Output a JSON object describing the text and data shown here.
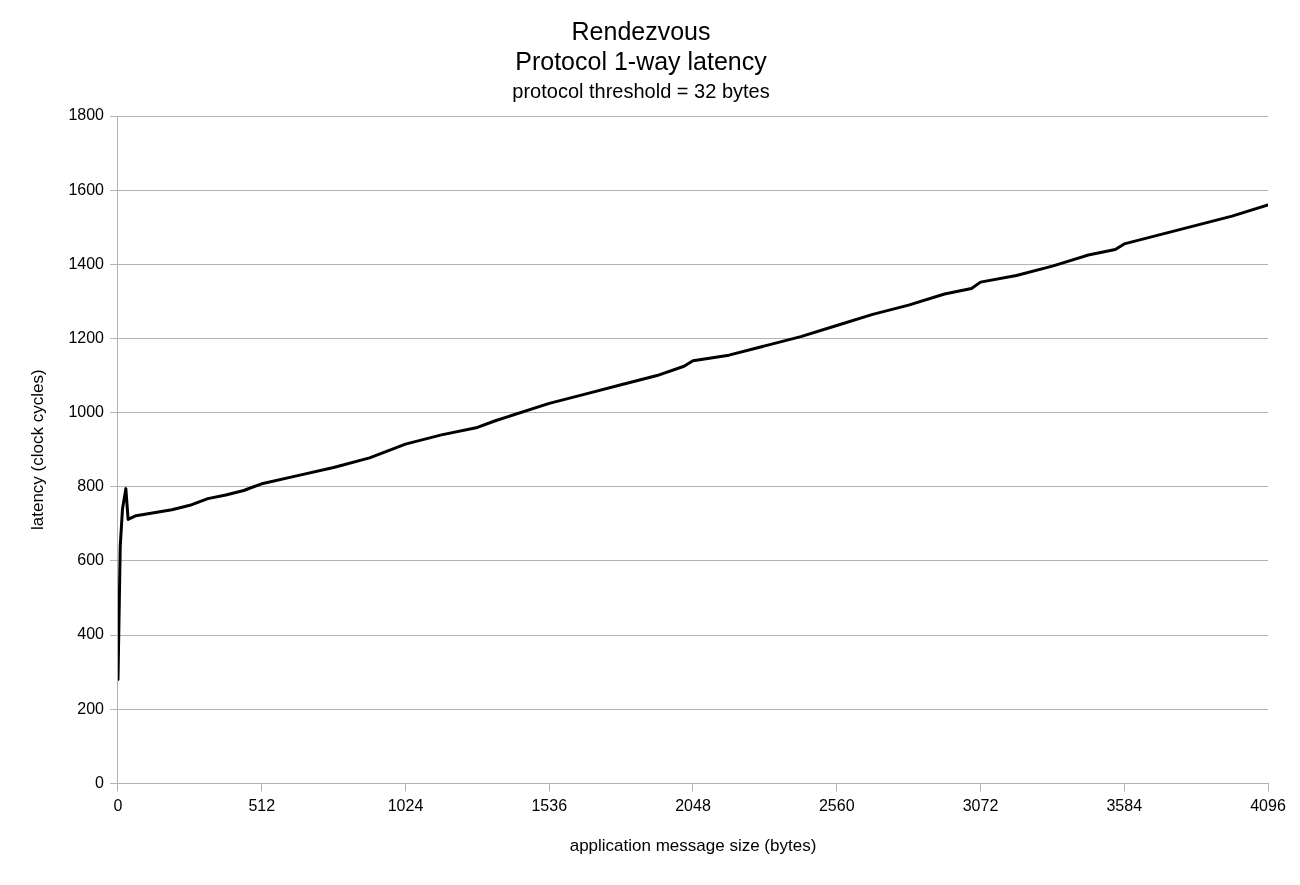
{
  "chart_data": {
    "type": "line",
    "title": "Rendezvous\nProtocol 1-way latency",
    "subtitle": "protocol threshold = 32 bytes",
    "xlabel": "application message size (bytes)",
    "ylabel": "latency (clock cycles)",
    "x": [
      0,
      8,
      16,
      28,
      36,
      64,
      128,
      192,
      256,
      320,
      384,
      448,
      512,
      640,
      768,
      896,
      1024,
      1152,
      1280,
      1344,
      1536,
      1664,
      1792,
      1920,
      2016,
      2048,
      2176,
      2304,
      2432,
      2560,
      2688,
      2816,
      2944,
      3040,
      3072,
      3200,
      3328,
      3456,
      3552,
      3584,
      3712,
      3840,
      3968,
      4096
    ],
    "series": [
      {
        "color": "#000000",
        "values": [
          280,
          640,
          740,
          795,
          712,
          722,
          730,
          738,
          750,
          768,
          778,
          790,
          808,
          830,
          852,
          878,
          915,
          940,
          960,
          978,
          1025,
          1050,
          1075,
          1100,
          1125,
          1140,
          1155,
          1180,
          1205,
          1235,
          1265,
          1290,
          1320,
          1335,
          1352,
          1370,
          1395,
          1425,
          1440,
          1455,
          1480,
          1505,
          1530,
          1560
        ]
      }
    ],
    "xlim": [
      0,
      4096
    ],
    "xticks": [
      0,
      512,
      1024,
      1536,
      2048,
      2560,
      3072,
      3584,
      4096
    ],
    "ylim": [
      0,
      1800
    ],
    "yticks": [
      0,
      200,
      400,
      600,
      800,
      1000,
      1200,
      1400,
      1600,
      1800
    ],
    "grid": "y",
    "legend": false,
    "marker": "none",
    "line_style": "solid"
  }
}
